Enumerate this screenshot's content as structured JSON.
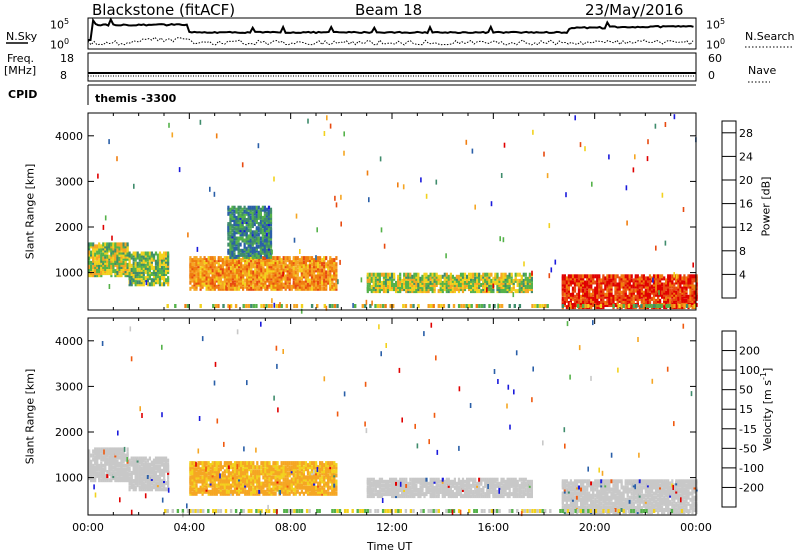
{
  "header": {
    "station": "Blackstone (fitACF)",
    "beam": "Beam 18",
    "date": "23/May/2016"
  },
  "top_panels": {
    "nsky_label": "N.Sky",
    "nsearch_label": "N.Search",
    "nsky_ticks": [
      "10^5",
      "10^0"
    ],
    "nsearch_ticks": [
      "10^5",
      "10^0"
    ],
    "freq_label": "Freq.",
    "freq_unit": "[MHz]",
    "freq_ticks": [
      "18",
      "8"
    ],
    "nave_label": "Nave",
    "nave_ticks": [
      "60",
      "0"
    ],
    "cpid_label": "CPID",
    "cpid_value": "themis -3300"
  },
  "chart_data": [
    {
      "type": "heatmap",
      "ylabel": "Slant Range [km]",
      "xlabel": "Time UT",
      "x_ticks": [
        "00:00",
        "04:00",
        "08:00",
        "12:00",
        "16:00",
        "20:00",
        "00:00"
      ],
      "x_range_hours": [
        0,
        24
      ],
      "y_ticks": [
        1000,
        2000,
        3000,
        4000
      ],
      "y_range": [
        180,
        4500
      ],
      "colorbar": {
        "label": "Power [dB]",
        "ticks": [
          4,
          8,
          12,
          16,
          20,
          24,
          28
        ],
        "range": [
          0,
          30
        ],
        "colors": [
          "#1a1adc",
          "#2a5fa8",
          "#3f8c6c",
          "#55b24a",
          "#f2d21e",
          "#f5a623",
          "#f07e10",
          "#e84a10",
          "#e00000"
        ]
      },
      "echo_regions": [
        {
          "t": [
            0.0,
            1.6
          ],
          "r": [
            900,
            1600
          ],
          "value": 14
        },
        {
          "t": [
            1.6,
            3.2
          ],
          "r": [
            700,
            1400
          ],
          "value": 12
        },
        {
          "t": [
            4.0,
            9.8
          ],
          "r": [
            600,
            1300
          ],
          "value": 20
        },
        {
          "t": [
            5.5,
            7.2
          ],
          "r": [
            1300,
            2400
          ],
          "value": 8
        },
        {
          "t": [
            11.0,
            17.5
          ],
          "r": [
            550,
            950
          ],
          "value": 14
        },
        {
          "t": [
            18.7,
            24.0
          ],
          "r": [
            200,
            900
          ],
          "value": 26
        }
      ]
    },
    {
      "type": "heatmap",
      "ylabel": "Slant Range [km]",
      "xlabel": "Time UT",
      "x_ticks": [
        "00:00",
        "04:00",
        "08:00",
        "12:00",
        "16:00",
        "20:00",
        "00:00"
      ],
      "x_range_hours": [
        0,
        24
      ],
      "y_ticks": [
        1000,
        2000,
        3000,
        4000
      ],
      "y_range": [
        180,
        4500
      ],
      "colorbar": {
        "label": "Velocity",
        "unit_text": "[m s",
        "unit_exp": "-1",
        "unit_end": "]",
        "ticks": [
          "-200",
          "-100",
          "-50",
          "-15",
          "15",
          "50",
          "100",
          "200"
        ],
        "colors": [
          "#e00000",
          "#f05a10",
          "#f5a623",
          "#f2d21e",
          "#c8c8c8",
          "#55b24a",
          "#3f8c6c",
          "#2a5fa8",
          "#1a1adc"
        ]
      },
      "echo_regions": [
        {
          "t": [
            0.0,
            1.6
          ],
          "r": [
            900,
            1600
          ],
          "value": 0
        },
        {
          "t": [
            1.6,
            3.2
          ],
          "r": [
            700,
            1400
          ],
          "value": 0
        },
        {
          "t": [
            4.0,
            9.8
          ],
          "r": [
            600,
            1300
          ],
          "value": -40
        },
        {
          "t": [
            11.0,
            17.5
          ],
          "r": [
            550,
            950
          ],
          "value": 0
        },
        {
          "t": [
            18.7,
            24.0
          ],
          "r": [
            200,
            900
          ],
          "value": 0
        }
      ]
    }
  ]
}
